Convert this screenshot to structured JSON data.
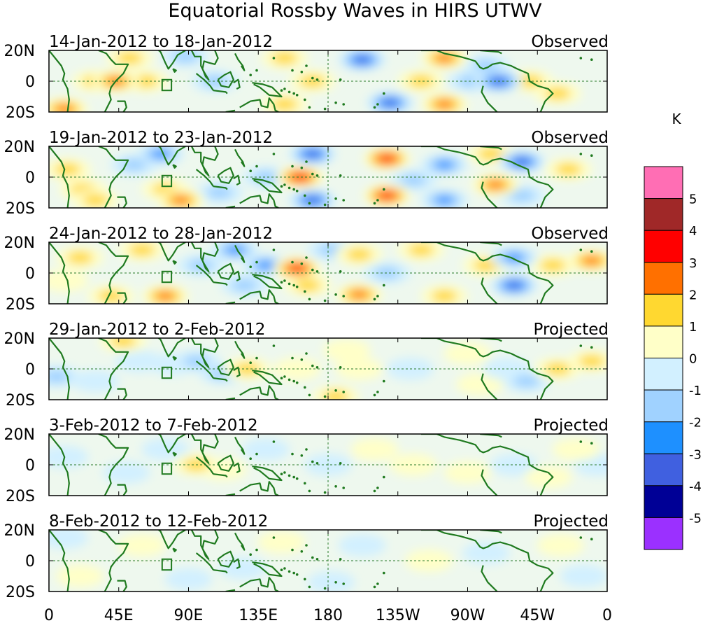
{
  "title": "Equatorial Rossby Waves in HIRS UTWV",
  "units": "K",
  "panels": [
    {
      "dates": "14-Jan-2012 to 18-Jan-2012",
      "status": "Observed"
    },
    {
      "dates": "19-Jan-2012 to 23-Jan-2012",
      "status": "Observed"
    },
    {
      "dates": "24-Jan-2012 to 28-Jan-2012",
      "status": "Observed"
    },
    {
      "dates": "29-Jan-2012 to 2-Feb-2012",
      "status": "Projected"
    },
    {
      "dates": "3-Feb-2012 to 7-Feb-2012",
      "status": "Projected"
    },
    {
      "dates": "8-Feb-2012 to 12-Feb-2012",
      "status": "Projected"
    }
  ],
  "lat_ticks": [
    "20N",
    "0",
    "20S"
  ],
  "lon_ticks": [
    "0",
    "45E",
    "90E",
    "135E",
    "180",
    "135W",
    "90W",
    "45W",
    "0"
  ],
  "colorbar": {
    "labels": [
      "5",
      "4",
      "3",
      "2",
      "1",
      "0",
      "-1",
      "-2",
      "-3",
      "-4",
      "-5"
    ],
    "colors": [
      "#ff6eb4",
      "#a02828",
      "#ff0000",
      "#ff7000",
      "#ffd830",
      "#ffffc8",
      "#d2f0ff",
      "#a0d2ff",
      "#1e90ff",
      "#4060e0",
      "#000096",
      "#9b30ff"
    ]
  },
  "anomaly_fields": [
    [
      [
        10,
        -18,
        2.5
      ],
      [
        30,
        0,
        1.5
      ],
      [
        43,
        0,
        2.5
      ],
      [
        52,
        15,
        1.5
      ],
      [
        62,
        0,
        1.5
      ],
      [
        88,
        16,
        -1.5
      ],
      [
        107,
        0,
        -1.5
      ],
      [
        152,
        15,
        1.5
      ],
      [
        152,
        -15,
        1.5
      ],
      [
        170,
        0,
        1.5
      ],
      [
        202,
        14,
        -3.5
      ],
      [
        220,
        -14,
        -3.5
      ],
      [
        240,
        0,
        1.5
      ],
      [
        255,
        15,
        2.5
      ],
      [
        255,
        -15,
        2.5
      ],
      [
        272,
        0,
        -1.5
      ],
      [
        282,
        10,
        -1.5
      ],
      [
        290,
        0,
        -3.5
      ],
      [
        310,
        0,
        1.5
      ],
      [
        328,
        -8,
        1.5
      ]
    ],
    [
      [
        12,
        5,
        1.5
      ],
      [
        22,
        -8,
        1.5
      ],
      [
        30,
        -15,
        1.5
      ],
      [
        55,
        8,
        -1.5
      ],
      [
        72,
        15,
        -2.5
      ],
      [
        75,
        -8,
        1.5
      ],
      [
        85,
        -15,
        2.5
      ],
      [
        110,
        -10,
        -1.5
      ],
      [
        140,
        0,
        -1.5
      ],
      [
        162,
        0,
        3.5
      ],
      [
        170,
        15,
        -3.5
      ],
      [
        170,
        -15,
        -3.5
      ],
      [
        218,
        12,
        3.5
      ],
      [
        218,
        -12,
        3.5
      ],
      [
        235,
        -2,
        -1.5
      ],
      [
        255,
        8,
        -2.5
      ],
      [
        255,
        -15,
        -2.5
      ],
      [
        285,
        15,
        2
      ],
      [
        288,
        -5,
        2.5
      ],
      [
        305,
        10,
        -3.5
      ],
      [
        305,
        -12,
        -1.5
      ],
      [
        335,
        5,
        1.5
      ]
    ],
    [
      [
        20,
        10,
        2
      ],
      [
        10,
        -5,
        1
      ],
      [
        40,
        -15,
        2
      ],
      [
        60,
        15,
        2
      ],
      [
        75,
        -15,
        2.5
      ],
      [
        98,
        5,
        -1.5
      ],
      [
        120,
        15,
        -3
      ],
      [
        126,
        -8,
        -1.5
      ],
      [
        140,
        5,
        -2.5
      ],
      [
        160,
        3,
        3.5
      ],
      [
        167,
        -8,
        1.5
      ],
      [
        182,
        15,
        -1.5
      ],
      [
        200,
        12,
        2
      ],
      [
        200,
        -14,
        2.5
      ],
      [
        218,
        0,
        -1.5
      ],
      [
        240,
        15,
        1.5
      ],
      [
        255,
        -15,
        1.5
      ],
      [
        282,
        5,
        1.5
      ],
      [
        300,
        10,
        -2.5
      ],
      [
        300,
        -8,
        -3.5
      ],
      [
        325,
        5,
        2
      ],
      [
        350,
        8,
        2.5
      ]
    ],
    [
      [
        5,
        -5,
        -1.5
      ],
      [
        30,
        -8,
        -1
      ],
      [
        48,
        18,
        1.8
      ],
      [
        58,
        5,
        -1
      ],
      [
        80,
        3,
        -1.2
      ],
      [
        95,
        5,
        -1.5
      ],
      [
        112,
        -3,
        -1.5
      ],
      [
        128,
        0,
        1.5
      ],
      [
        160,
        0,
        0.8
      ],
      [
        185,
        -18,
        1.5
      ],
      [
        192,
        12,
        1.2
      ],
      [
        200,
        0,
        0.5
      ],
      [
        233,
        0,
        -1.2
      ],
      [
        270,
        10,
        0.8
      ],
      [
        278,
        -10,
        0.8
      ],
      [
        295,
        0,
        -1
      ],
      [
        308,
        -8,
        -1.5
      ],
      [
        328,
        0,
        1.5
      ],
      [
        350,
        5,
        1.5
      ]
    ],
    [
      [
        10,
        5,
        -0.8
      ],
      [
        50,
        -5,
        -0.6
      ],
      [
        75,
        10,
        -0.8
      ],
      [
        95,
        0,
        1.5
      ],
      [
        112,
        -3,
        0.8
      ],
      [
        140,
        10,
        -0.6
      ],
      [
        180,
        0,
        -0.5
      ],
      [
        210,
        10,
        0.6
      ],
      [
        235,
        0,
        0.7
      ],
      [
        270,
        -5,
        0.6
      ],
      [
        300,
        0,
        -0.5
      ],
      [
        322,
        -8,
        1.2
      ],
      [
        340,
        10,
        1.1
      ],
      [
        354,
        0,
        -1
      ]
    ],
    [
      [
        10,
        15,
        -0.5
      ],
      [
        20,
        -10,
        0.5
      ],
      [
        60,
        10,
        0.6
      ],
      [
        90,
        -12,
        -0.6
      ],
      [
        125,
        -5,
        -0.5
      ],
      [
        150,
        12,
        0.5
      ],
      [
        182,
        -14,
        -0.8
      ],
      [
        202,
        10,
        -0.5
      ],
      [
        245,
        0,
        0.6
      ],
      [
        282,
        5,
        -0.6
      ],
      [
        330,
        10,
        0.5
      ],
      [
        345,
        -10,
        -0.6
      ]
    ]
  ],
  "boxes": [
    {
      "lon0": 73,
      "lon1": 79,
      "lat0": -6,
      "lat1": 1
    }
  ]
}
